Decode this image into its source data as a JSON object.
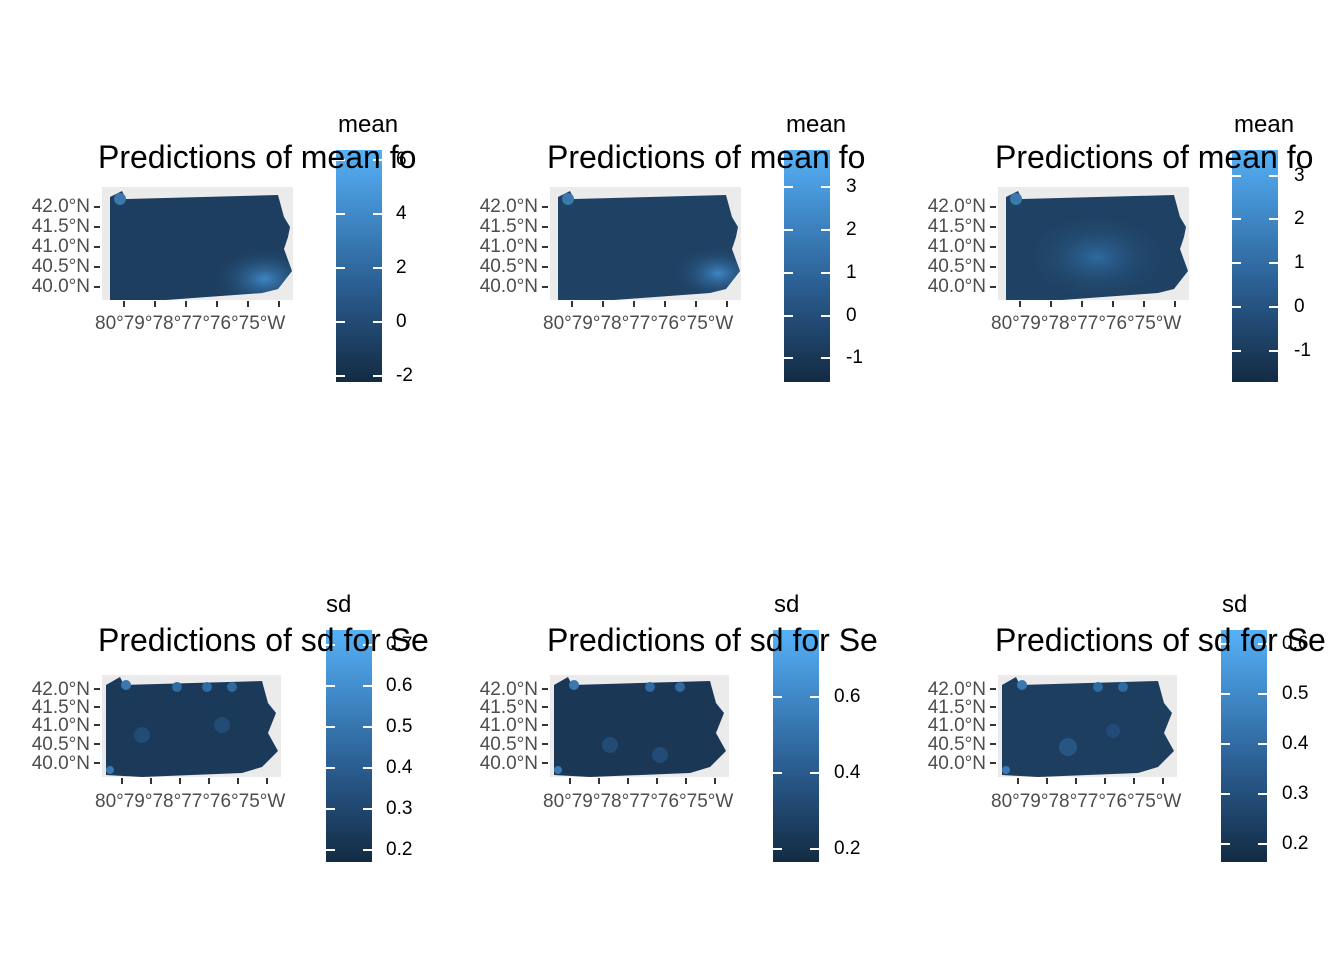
{
  "panels": [
    {
      "title": "Predictions of mean fo",
      "legend_title": "mean",
      "legend_labels": [
        "6",
        "4",
        "2",
        "0",
        "-2"
      ],
      "y_labels": [
        "42.0°N",
        "41.5°N",
        "41.0°N",
        "40.5°N",
        "40.0°N"
      ],
      "x_labels": [
        "80°W",
        "79°W",
        "78°W",
        "77°W",
        "76°W",
        "75°W"
      ],
      "x_label_text": "80°79°78°77°76°75°W"
    },
    {
      "title": "Predictions of mean fo",
      "legend_title": "mean",
      "legend_labels": [
        "3",
        "2",
        "1",
        "0",
        "-1"
      ],
      "y_labels": [
        "42.0°N",
        "41.5°N",
        "41.0°N",
        "40.5°N",
        "40.0°N"
      ],
      "x_labels": [
        "80°W",
        "79°W",
        "78°W",
        "77°W",
        "76°W",
        "75°W"
      ],
      "x_label_text": "80°79°78°77°76°75°W"
    },
    {
      "title": "Predictions of mean fo",
      "legend_title": "mean",
      "legend_labels": [
        "3",
        "2",
        "1",
        "0",
        "-1"
      ],
      "y_labels": [
        "42.0°N",
        "41.5°N",
        "41.0°N",
        "40.5°N",
        "40.0°N"
      ],
      "x_labels": [
        "80°W",
        "79°W",
        "78°W",
        "77°W",
        "76°W",
        "75°W"
      ],
      "x_label_text": "80°79°78°77°76°75°W"
    },
    {
      "title": "Predictions of sd for Se",
      "legend_title": "sd",
      "legend_labels": [
        "0.7",
        "0.6",
        "0.5",
        "0.4",
        "0.3",
        "0.2"
      ],
      "y_labels": [
        "42.0°N",
        "41.5°N",
        "41.0°N",
        "40.5°N",
        "40.0°N"
      ],
      "x_labels": [
        "80°W",
        "79°W",
        "78°W",
        "77°W",
        "76°W",
        "75°W"
      ],
      "x_label_text": "80°79°78°77°76°75°W"
    },
    {
      "title": "Predictions of sd for Se",
      "legend_title": "sd",
      "legend_labels": [
        "0.6",
        "0.4",
        "0.2"
      ],
      "y_labels": [
        "42.0°N",
        "41.5°N",
        "41.0°N",
        "40.5°N",
        "40.0°N"
      ],
      "x_labels": [
        "80°W",
        "79°W",
        "78°W",
        "77°W",
        "76°W",
        "75°W"
      ],
      "x_label_text": "80°79°78°77°76°75°W"
    },
    {
      "title": "Predictions of sd for Se",
      "legend_title": "sd",
      "legend_labels": [
        "0.6",
        "0.5",
        "0.4",
        "0.3",
        "0.2"
      ],
      "y_labels": [
        "42.0°N",
        "41.5°N",
        "41.0°N",
        "40.5°N",
        "40.0°N"
      ],
      "x_labels": [
        "80°W",
        "79°W",
        "78°W",
        "77°W",
        "76°W",
        "75°W"
      ],
      "x_label_text": "80°79°78°77°76°75°W"
    }
  ],
  "colors": {
    "low": "#132b43",
    "high": "#56b1f7",
    "panel_background": "#ebebeb"
  }
}
